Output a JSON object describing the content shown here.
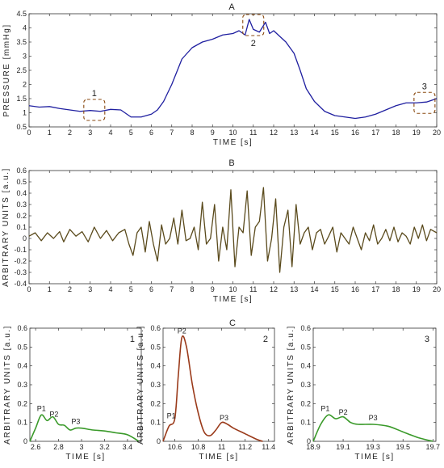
{
  "chart_data": [
    {
      "panel": "A",
      "type": "line",
      "xlabel": "TIME [s]",
      "ylabel": "PRESSURE [mmHg]",
      "xlim": [
        0,
        20
      ],
      "ylim": [
        0.5,
        4.5
      ],
      "xticks": [
        0,
        1,
        2,
        3,
        4,
        5,
        6,
        7,
        8,
        9,
        10,
        11,
        12,
        13,
        14,
        15,
        16,
        17,
        18,
        19,
        20
      ],
      "yticks": [
        0.5,
        1,
        1.5,
        2,
        2.5,
        3,
        3.5,
        4,
        4.5
      ],
      "grid": false,
      "color": "#1f1fa0",
      "x": [
        0,
        0.5,
        1,
        1.5,
        2,
        2.5,
        3,
        3.5,
        4,
        4.5,
        4.8,
        5,
        5.5,
        6,
        6.3,
        6.6,
        7,
        7.5,
        8,
        8.5,
        9,
        9.5,
        10,
        10.3,
        10.6,
        10.8,
        11,
        11.3,
        11.6,
        11.8,
        12,
        12.3,
        12.6,
        13,
        13.3,
        13.6,
        14,
        14.5,
        15,
        15.5,
        16,
        16.5,
        17,
        17.5,
        18,
        18.5,
        19,
        19.5,
        20
      ],
      "y": [
        1.25,
        1.2,
        1.22,
        1.15,
        1.1,
        1.05,
        1.08,
        1.05,
        1.12,
        1.1,
        0.95,
        0.85,
        0.85,
        0.95,
        1.1,
        1.4,
        2.0,
        2.9,
        3.3,
        3.5,
        3.6,
        3.75,
        3.8,
        3.9,
        3.75,
        4.3,
        3.95,
        3.85,
        4.2,
        3.8,
        3.9,
        3.7,
        3.5,
        3.1,
        2.5,
        1.85,
        1.4,
        1.05,
        0.9,
        0.85,
        0.8,
        0.85,
        0.95,
        1.1,
        1.25,
        1.35,
        1.35,
        1.38,
        1.5
      ],
      "annotations": [
        {
          "label": "1",
          "x": 3.2,
          "y": 1.1
        },
        {
          "label": "2",
          "x": 11.0,
          "y": 4.1
        },
        {
          "label": "3",
          "x": 19.4,
          "y": 1.35
        }
      ]
    },
    {
      "panel": "B",
      "type": "line",
      "xlabel": "TIME [s]",
      "ylabel": "ARBITRARY UNITS [a.u.]",
      "xlim": [
        0,
        20
      ],
      "ylim": [
        -0.4,
        0.6
      ],
      "xticks": [
        0,
        1,
        2,
        3,
        4,
        5,
        6,
        7,
        8,
        9,
        10,
        11,
        12,
        13,
        14,
        15,
        16,
        17,
        18,
        19,
        20
      ],
      "yticks": [
        -0.4,
        -0.3,
        -0.2,
        -0.1,
        0,
        0.1,
        0.2,
        0.3,
        0.4,
        0.5,
        0.6
      ],
      "grid": false,
      "color": "#5a4a1c",
      "x": [
        0,
        0.3,
        0.6,
        0.9,
        1.2,
        1.5,
        1.7,
        2.0,
        2.3,
        2.6,
        2.9,
        3.2,
        3.5,
        3.8,
        4.1,
        4.4,
        4.7,
        4.9,
        5.1,
        5.3,
        5.5,
        5.7,
        5.9,
        6.1,
        6.3,
        6.5,
        6.7,
        6.9,
        7.1,
        7.3,
        7.5,
        7.7,
        7.9,
        8.1,
        8.3,
        8.5,
        8.7,
        8.9,
        9.1,
        9.3,
        9.5,
        9.7,
        9.9,
        10.1,
        10.3,
        10.5,
        10.7,
        10.9,
        11.1,
        11.3,
        11.5,
        11.7,
        11.9,
        12.1,
        12.3,
        12.5,
        12.7,
        12.9,
        13.1,
        13.3,
        13.5,
        13.7,
        13.9,
        14.1,
        14.3,
        14.5,
        14.7,
        14.9,
        15.1,
        15.3,
        15.5,
        15.7,
        15.9,
        16.1,
        16.3,
        16.5,
        16.7,
        16.9,
        17.1,
        17.3,
        17.5,
        17.7,
        17.9,
        18.1,
        18.3,
        18.5,
        18.7,
        18.9,
        19.1,
        19.3,
        19.5,
        19.7,
        20
      ],
      "y": [
        0.02,
        0.05,
        -0.02,
        0.05,
        0.0,
        0.06,
        -0.03,
        0.08,
        0.02,
        0.06,
        -0.03,
        0.1,
        0.0,
        0.07,
        -0.02,
        0.05,
        0.08,
        -0.05,
        -0.15,
        0.05,
        0.1,
        -0.12,
        0.15,
        -0.05,
        -0.2,
        0.12,
        -0.05,
        0.0,
        0.18,
        -0.05,
        0.25,
        -0.02,
        0.0,
        0.1,
        -0.1,
        0.32,
        -0.05,
        0.0,
        0.3,
        -0.2,
        0.1,
        -0.1,
        0.43,
        -0.25,
        0.1,
        0.05,
        0.42,
        -0.15,
        0.1,
        0.15,
        0.45,
        -0.2,
        0.0,
        0.35,
        -0.3,
        0.1,
        0.25,
        -0.25,
        0.3,
        -0.05,
        0.05,
        0.1,
        -0.1,
        0.05,
        0.08,
        -0.05,
        0.02,
        0.1,
        -0.12,
        0.05,
        0.0,
        -0.05,
        0.1,
        0.0,
        -0.1,
        0.05,
        -0.02,
        0.12,
        -0.05,
        0.0,
        0.08,
        -0.02,
        0.1,
        -0.03,
        0.05,
        0.02,
        -0.05,
        0.1,
        0.0,
        0.12,
        -0.02,
        0.08,
        0.05
      ]
    },
    {
      "panel": "C1",
      "type": "line",
      "label": "1",
      "xlabel": "TIME [s]",
      "ylabel": "ARBITRARY UNITS [a.u.]",
      "xlim": [
        2.55,
        3.52
      ],
      "ylim": [
        0,
        0.6
      ],
      "xticks": [
        2.6,
        2.8,
        3,
        3.2,
        3.4
      ],
      "yticks": [
        0,
        0.1,
        0.2,
        0.3,
        0.4,
        0.5,
        0.6
      ],
      "color": "#3a9a2a",
      "x": [
        2.55,
        2.6,
        2.65,
        2.7,
        2.75,
        2.8,
        2.85,
        2.9,
        2.95,
        3.0,
        3.1,
        3.2,
        3.3,
        3.4,
        3.5
      ],
      "y": [
        0.0,
        0.07,
        0.14,
        0.11,
        0.13,
        0.09,
        0.085,
        0.06,
        0.07,
        0.07,
        0.06,
        0.055,
        0.045,
        0.035,
        0.0
      ],
      "peaks": [
        {
          "label": "P1",
          "x": 2.65,
          "y": 0.14
        },
        {
          "label": "P2",
          "x": 2.76,
          "y": 0.11
        },
        {
          "label": "P3",
          "x": 2.95,
          "y": 0.07
        }
      ]
    },
    {
      "panel": "C2",
      "type": "line",
      "label": "2",
      "panel_letter": "C",
      "xlabel": "TIME [s]",
      "ylabel": "ARBITRARY UNITS [a.u.]",
      "xlim": [
        10.5,
        11.45
      ],
      "ylim": [
        0,
        0.6
      ],
      "xticks": [
        10.6,
        10.8,
        11,
        11.2,
        11.4
      ],
      "yticks": [
        0,
        0.1,
        0.2,
        0.3,
        0.4,
        0.5,
        0.6
      ],
      "color": "#9a3a1a",
      "x": [
        10.5,
        10.55,
        10.6,
        10.63,
        10.66,
        10.7,
        10.75,
        10.8,
        10.85,
        10.9,
        10.95,
        11.0,
        11.05,
        11.1,
        11.2,
        11.3,
        11.35
      ],
      "y": [
        0.0,
        0.08,
        0.12,
        0.35,
        0.55,
        0.5,
        0.3,
        0.15,
        0.05,
        0.03,
        0.06,
        0.1,
        0.09,
        0.07,
        0.04,
        0.01,
        0.0
      ],
      "peaks": [
        {
          "label": "P1",
          "x": 10.57,
          "y": 0.1
        },
        {
          "label": "P2",
          "x": 10.66,
          "y": 0.55
        },
        {
          "label": "P3",
          "x": 11.02,
          "y": 0.09
        }
      ]
    },
    {
      "panel": "C3",
      "type": "line",
      "label": "3",
      "xlabel": "TIME [s]",
      "ylabel": "ARBITRARY UNITS [a.u.]",
      "xlim": [
        18.9,
        19.72
      ],
      "ylim": [
        0,
        0.6
      ],
      "xticks": [
        18.9,
        19.1,
        19.3,
        19.5,
        19.7
      ],
      "yticks": [
        0,
        0.1,
        0.2,
        0.3,
        0.4,
        0.5,
        0.6
      ],
      "color": "#3a9a2a",
      "x": [
        18.9,
        18.95,
        19.0,
        19.05,
        19.1,
        19.15,
        19.2,
        19.3,
        19.4,
        19.5,
        19.6,
        19.7
      ],
      "y": [
        0.0,
        0.09,
        0.14,
        0.12,
        0.13,
        0.1,
        0.09,
        0.09,
        0.08,
        0.05,
        0.02,
        0.0
      ],
      "peaks": [
        {
          "label": "P1",
          "x": 18.98,
          "y": 0.14
        },
        {
          "label": "P2",
          "x": 19.1,
          "y": 0.12
        },
        {
          "label": "P3",
          "x": 19.3,
          "y": 0.09
        }
      ]
    }
  ],
  "panel_titles": {
    "a": "A",
    "b": "B",
    "c": "C"
  }
}
